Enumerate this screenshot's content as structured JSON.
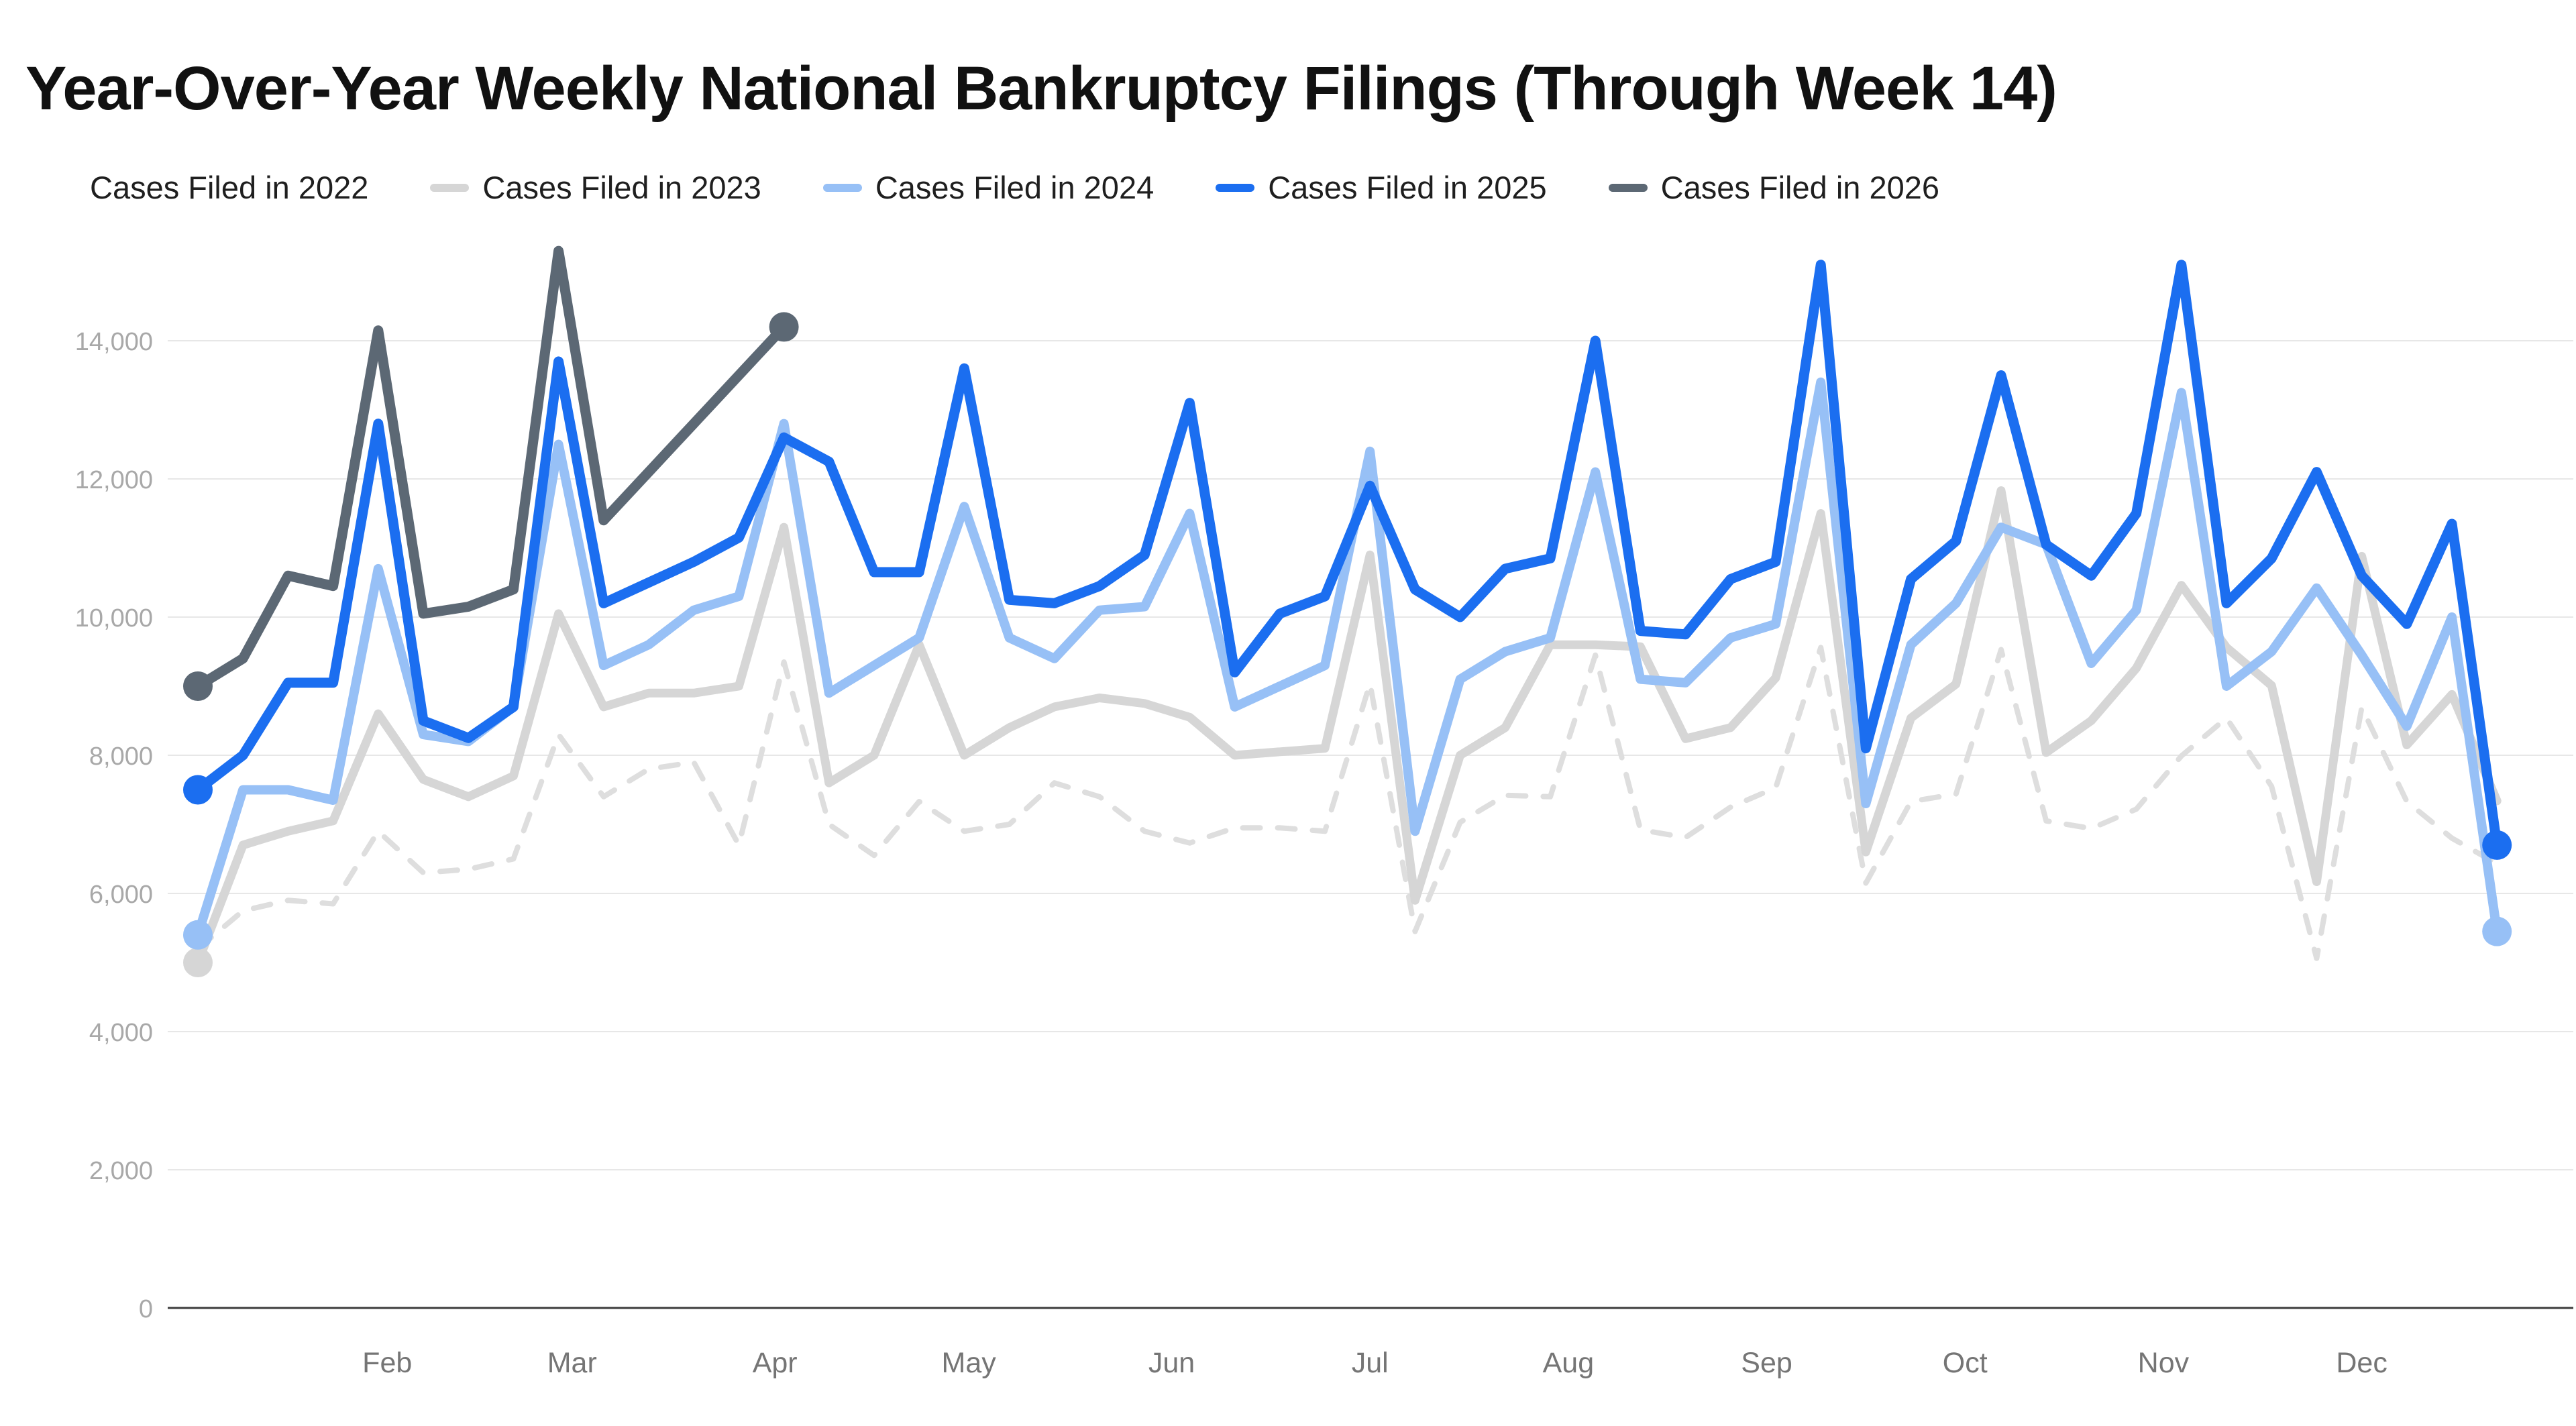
{
  "title": "Year-Over-Year Weekly National Bankruptcy Filings (Through Week 14)",
  "legend": [
    {
      "label": "Cases Filed in 2022",
      "color": "#dedede",
      "dashed": true
    },
    {
      "label": "Cases Filed in 2023",
      "color": "#d6d6d6",
      "dashed": false
    },
    {
      "label": "Cases Filed in 2024",
      "color": "#97c0f6",
      "dashed": false
    },
    {
      "label": "Cases Filed in 2025",
      "color": "#1b6ef0",
      "dashed": false
    },
    {
      "label": "Cases Filed in 2026",
      "color": "#5c6874",
      "dashed": false
    }
  ],
  "chart_data": {
    "type": "line",
    "title": "Year-Over-Year Weekly National Bankruptcy Filings (Through Week 14)",
    "xlabel": "",
    "ylabel": "",
    "x_unit": "week of year (1-52)",
    "ylim": [
      0,
      15500
    ],
    "yticks": [
      0,
      2000,
      4000,
      6000,
      8000,
      10000,
      12000,
      14000
    ],
    "ytick_labels": [
      "0",
      "2,000",
      "4,000",
      "6,000",
      "8,000",
      "10,000",
      "12,000",
      "14,000"
    ],
    "grid": true,
    "legend_position": "top",
    "months": [
      {
        "label": "Feb",
        "week": 5.2
      },
      {
        "label": "Mar",
        "week": 9.3
      },
      {
        "label": "Apr",
        "week": 13.8
      },
      {
        "label": "May",
        "week": 18.1
      },
      {
        "label": "Jun",
        "week": 22.6
      },
      {
        "label": "Jul",
        "week": 27.0
      },
      {
        "label": "Aug",
        "week": 31.4
      },
      {
        "label": "Sep",
        "week": 35.8
      },
      {
        "label": "Oct",
        "week": 40.2
      },
      {
        "label": "Nov",
        "week": 44.6
      },
      {
        "label": "Dec",
        "week": 49.0
      }
    ],
    "series": [
      {
        "name": "Cases Filed in 2022",
        "color": "#dedede",
        "dashed": true,
        "width": 8,
        "start_dot": false,
        "end_dot": false,
        "values": [
          5200,
          5750,
          5900,
          5850,
          6900,
          6300,
          6350,
          6500,
          8300,
          7400,
          7800,
          7900,
          6700,
          9350,
          7000,
          6550,
          7330,
          6900,
          7000,
          7600,
          7400,
          6900,
          6730,
          6950,
          6950,
          6900,
          9040,
          5450,
          7030,
          7420,
          7400,
          9450,
          6920,
          6810,
          7250,
          7530,
          9560,
          6150,
          7330,
          7440,
          9530,
          7050,
          6940,
          7220,
          7990,
          8540,
          7550,
          5060,
          8690,
          7330,
          6800,
          6430
        ]
      },
      {
        "name": "Cases Filed in 2023",
        "color": "#d6d6d6",
        "dashed": false,
        "width": 13,
        "start_dot": true,
        "end_dot": false,
        "values": [
          5000,
          6700,
          6900,
          7050,
          8600,
          7650,
          7400,
          7700,
          10050,
          8700,
          8900,
          8900,
          9000,
          11300,
          7600,
          8000,
          9600,
          8000,
          8400,
          8700,
          8830,
          8750,
          8550,
          8000,
          8050,
          8100,
          10900,
          5900,
          8000,
          8400,
          9600,
          9600,
          9570,
          8240,
          8400,
          9120,
          11500,
          6600,
          8540,
          9030,
          11830,
          8040,
          8500,
          9260,
          10460,
          9560,
          9010,
          6170,
          10880,
          8150,
          8880,
          7340
        ]
      },
      {
        "name": "Cases Filed in 2024",
        "color": "#97c0f6",
        "dashed": false,
        "width": 14,
        "start_dot": true,
        "end_dot": true,
        "values": [
          5400,
          7500,
          7500,
          7350,
          10700,
          8300,
          8200,
          8700,
          12500,
          9300,
          9600,
          10100,
          10300,
          12800,
          8900,
          9300,
          9700,
          11600,
          9700,
          9400,
          10100,
          10150,
          11500,
          8700,
          9000,
          9300,
          12400,
          6900,
          9100,
          9500,
          9700,
          12100,
          9100,
          9050,
          9700,
          9900,
          13400,
          7300,
          9600,
          10200,
          11300,
          11050,
          9330,
          10100,
          13250,
          9000,
          9500,
          10420,
          9450,
          8420,
          10000,
          5450
        ]
      },
      {
        "name": "Cases Filed in 2025",
        "color": "#1b6ef0",
        "dashed": false,
        "width": 15,
        "start_dot": true,
        "end_dot": true,
        "values": [
          7500,
          8000,
          9050,
          9050,
          12800,
          8500,
          8250,
          8700,
          13700,
          10200,
          10500,
          10800,
          11150,
          12600,
          12250,
          10650,
          10650,
          13600,
          10250,
          10200,
          10450,
          10900,
          13100,
          9200,
          10050,
          10300,
          11900,
          10400,
          10000,
          10700,
          10850,
          14000,
          9800,
          9750,
          10550,
          10800,
          15100,
          8100,
          10550,
          11100,
          13500,
          11050,
          10600,
          11500,
          15100,
          10200,
          10850,
          12100,
          10600,
          9900,
          11350,
          6700
        ]
      },
      {
        "name": "Cases Filed in 2026",
        "color": "#5c6874",
        "dashed": false,
        "width": 15,
        "start_dot": true,
        "end_dot": true,
        "values": [
          9000,
          9400,
          10600,
          10450,
          14150,
          10050,
          10150,
          10400,
          15300,
          11400,
          12100,
          12800,
          13500,
          14200
        ]
      }
    ]
  },
  "axis_style": {
    "grid_color": "#e7e7e7",
    "baseline_color": "#3c3c3c",
    "ytick_color": "#a8a8a8",
    "month_color": "#757575"
  }
}
